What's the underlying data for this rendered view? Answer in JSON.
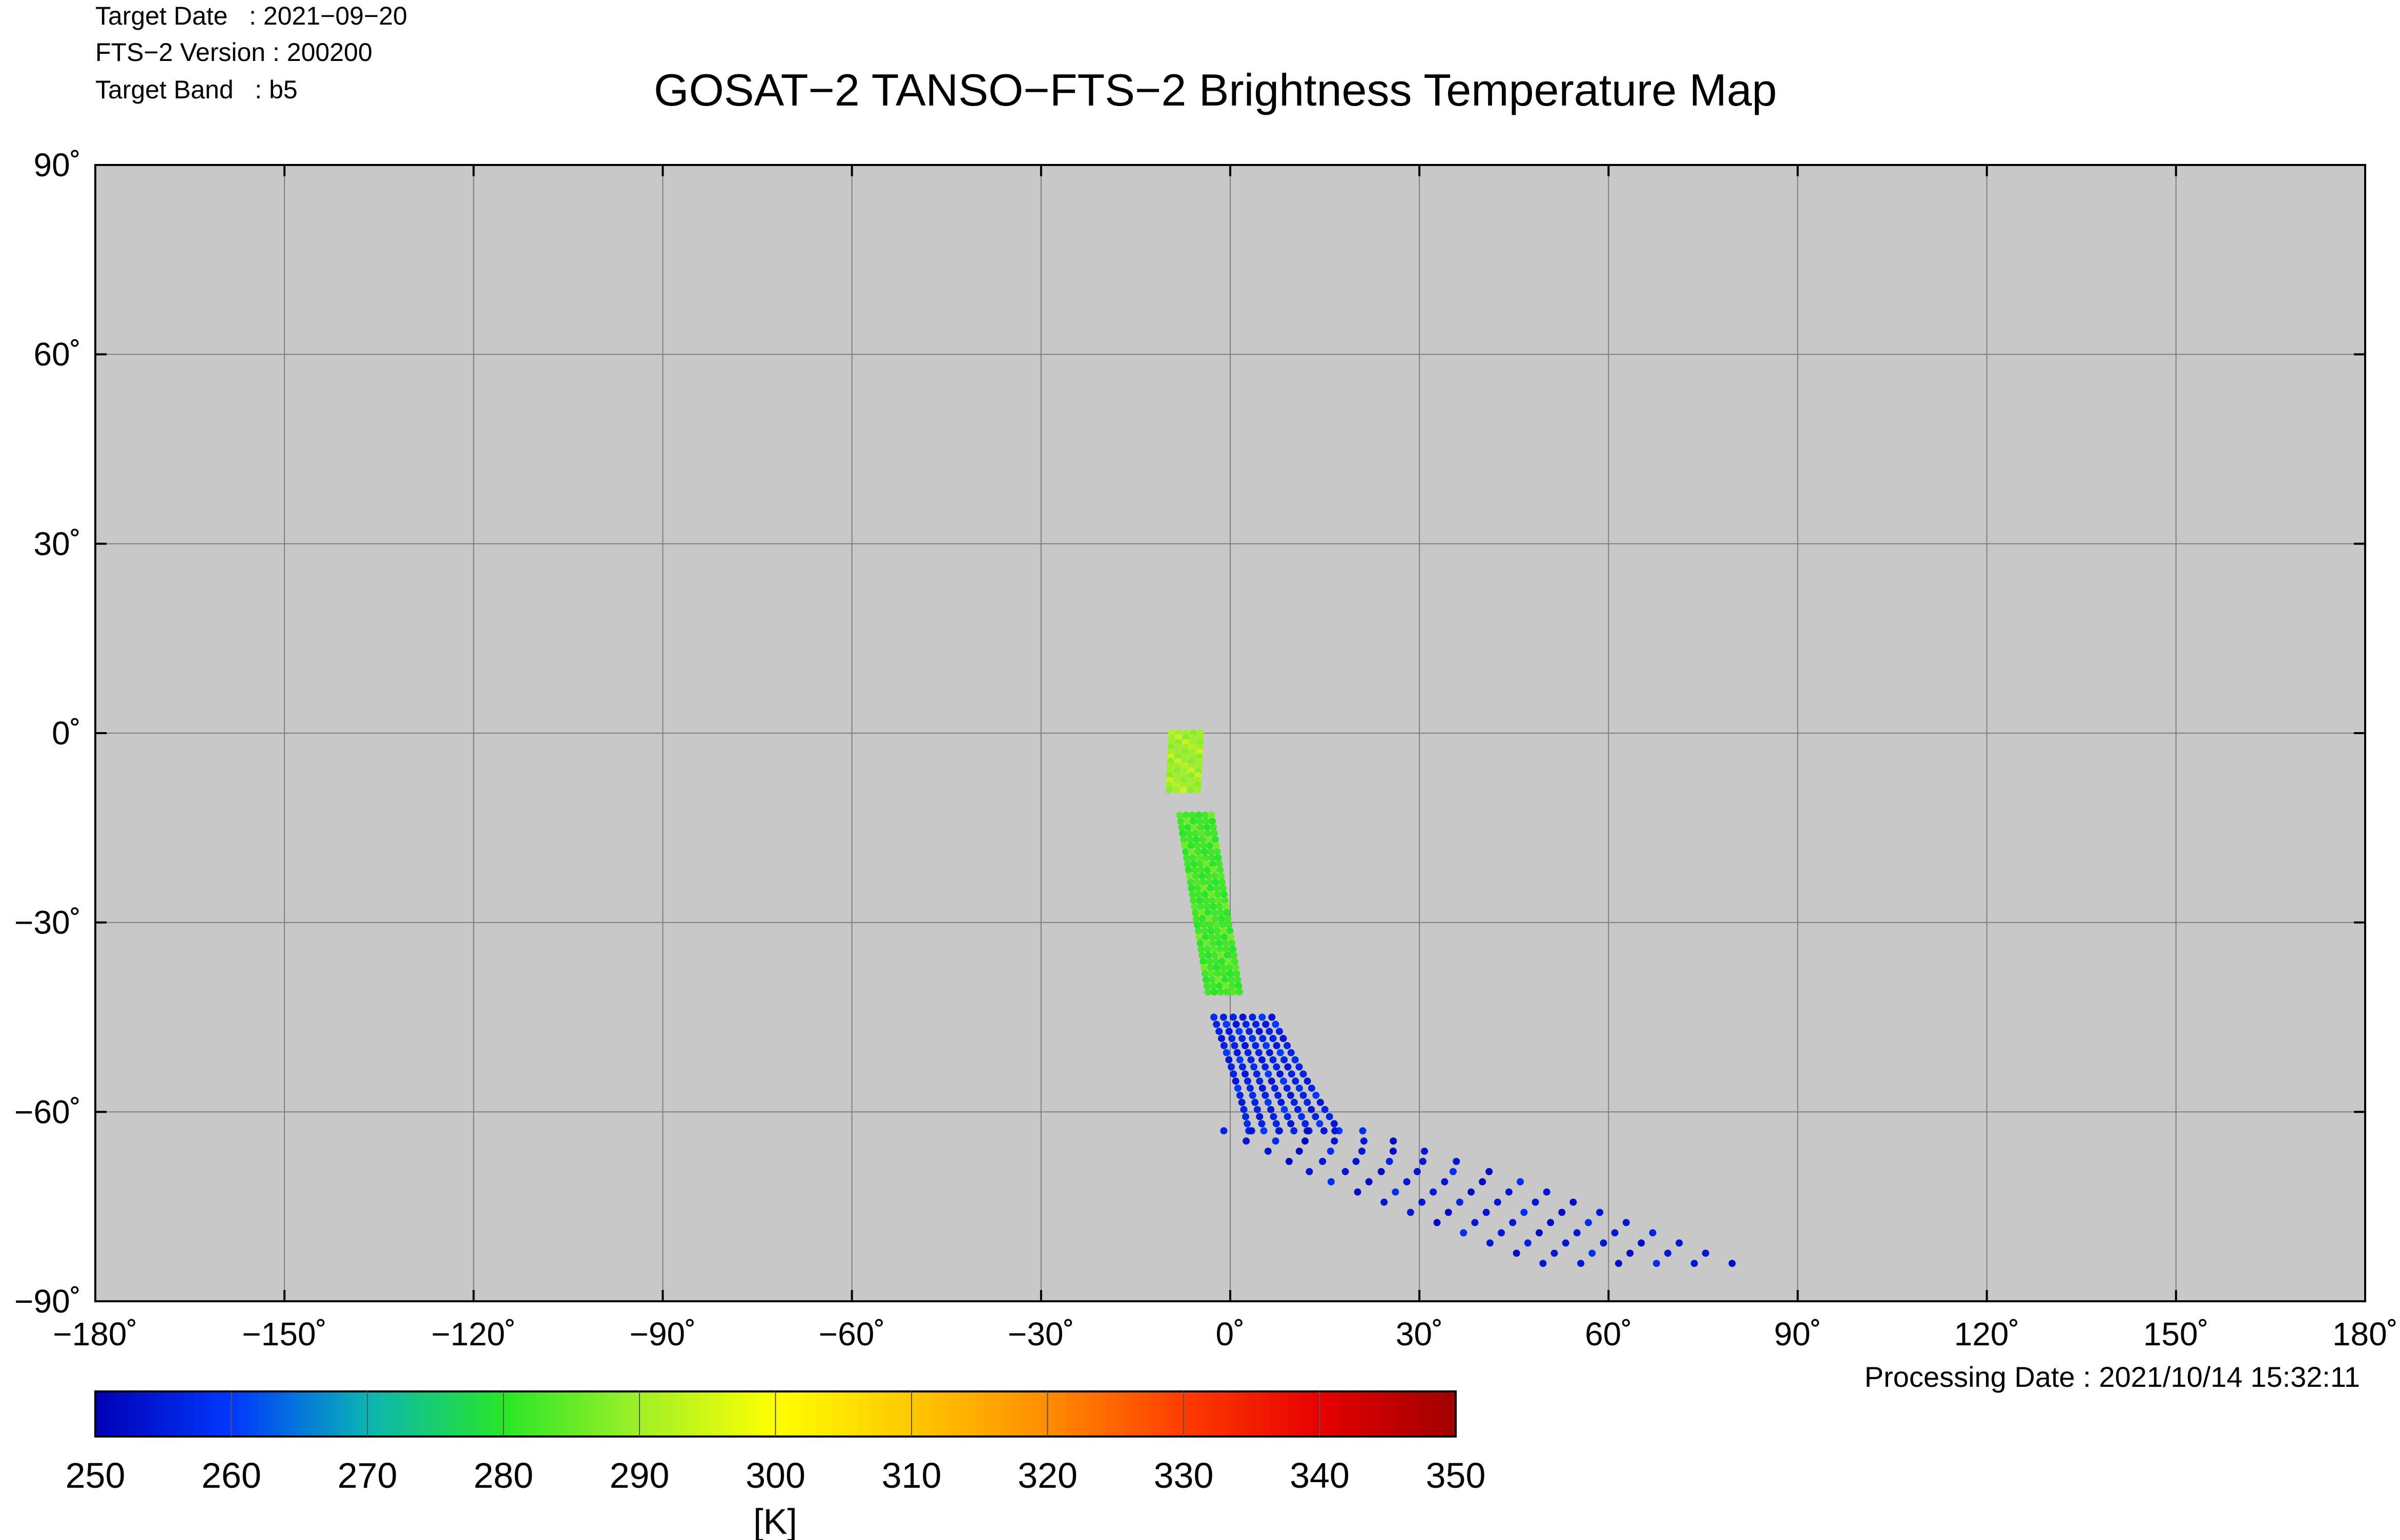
{
  "header": {
    "target_date": "Target Date   : 2021−09−20",
    "fts_version": "FTS−2 Version : 200200",
    "target_band": "Target Band   : b5"
  },
  "footer": {
    "processing_date": "Processing Date : 2021/10/14 15:32:11"
  },
  "colorbar": {
    "ticks": [
      "250",
      "260",
      "270",
      "280",
      "290",
      "300",
      "310",
      "320",
      "330",
      "340",
      "350"
    ],
    "unit": "[K]",
    "range": [
      250,
      350
    ]
  },
  "colors": {
    "map_background": "#c8c8c8",
    "coastline": "#6e6e6e",
    "grid": "#7f7f7f"
  },
  "chart_data": {
    "type": "scatter",
    "title": "GOSAT−2 TANSO−FTS−2 Brightness Temperature Map",
    "xlabel": "",
    "ylabel": "",
    "xlim": [
      -180,
      180
    ],
    "ylim": [
      -90,
      90
    ],
    "grid": true,
    "x_ticks": [
      -180,
      -150,
      -120,
      -90,
      -60,
      -30,
      0,
      30,
      60,
      90,
      120,
      150,
      180
    ],
    "y_ticks": [
      90,
      60,
      30,
      0,
      -30,
      -60,
      -90
    ],
    "x_tick_labels": [
      "−180˚",
      "−150˚",
      "−120˚",
      "−90˚",
      "−60˚",
      "−30˚",
      "0˚",
      "30˚",
      "60˚",
      "90˚",
      "120˚",
      "150˚",
      "180˚"
    ],
    "y_tick_labels": [
      "90˚",
      "60˚",
      "30˚",
      "0˚",
      "−30˚",
      "−60˚",
      "−90˚"
    ],
    "color_scale": "jet",
    "color_range": [
      250,
      350
    ],
    "segments": [
      {
        "lat": [
          0,
          -9
        ],
        "lon_start": -7.0,
        "lon_slope": 0.05,
        "width_deg": 4.5,
        "rows": 13,
        "cols": 5,
        "value": 290
      },
      {
        "lat": [
          -13,
          -41
        ],
        "lon_start": -5.5,
        "lon_slope": -0.16,
        "width_deg": 5.0,
        "rows": 30,
        "cols": 6,
        "value": 282
      },
      {
        "lat": [
          -45,
          -63
        ],
        "lon_start": 2.0,
        "lon_slope": -0.45,
        "width_deg": 6.5,
        "rows": 17,
        "cols": 7,
        "value": 256
      },
      {
        "lat": [
          -63,
          -84
        ],
        "lon_start": 10.0,
        "lon_slope": -2.6,
        "width_deg": 10.0,
        "rows": 14,
        "cols": 6,
        "value": 254
      }
    ],
    "point_samples": [
      {
        "lon": -6.0,
        "lat": -2.0,
        "value": 292
      },
      {
        "lon": -3.0,
        "lat": -20.0,
        "value": 296
      },
      {
        "lon": 1.0,
        "lat": -32.0,
        "value": 288
      },
      {
        "lon": 3.0,
        "lat": -40.0,
        "value": 276
      },
      {
        "lon": 5.0,
        "lat": -50.0,
        "value": 256
      },
      {
        "lon": 20.0,
        "lat": -72.0,
        "value": 253
      },
      {
        "lon": 65.0,
        "lat": -82.0,
        "value": 252
      }
    ]
  }
}
